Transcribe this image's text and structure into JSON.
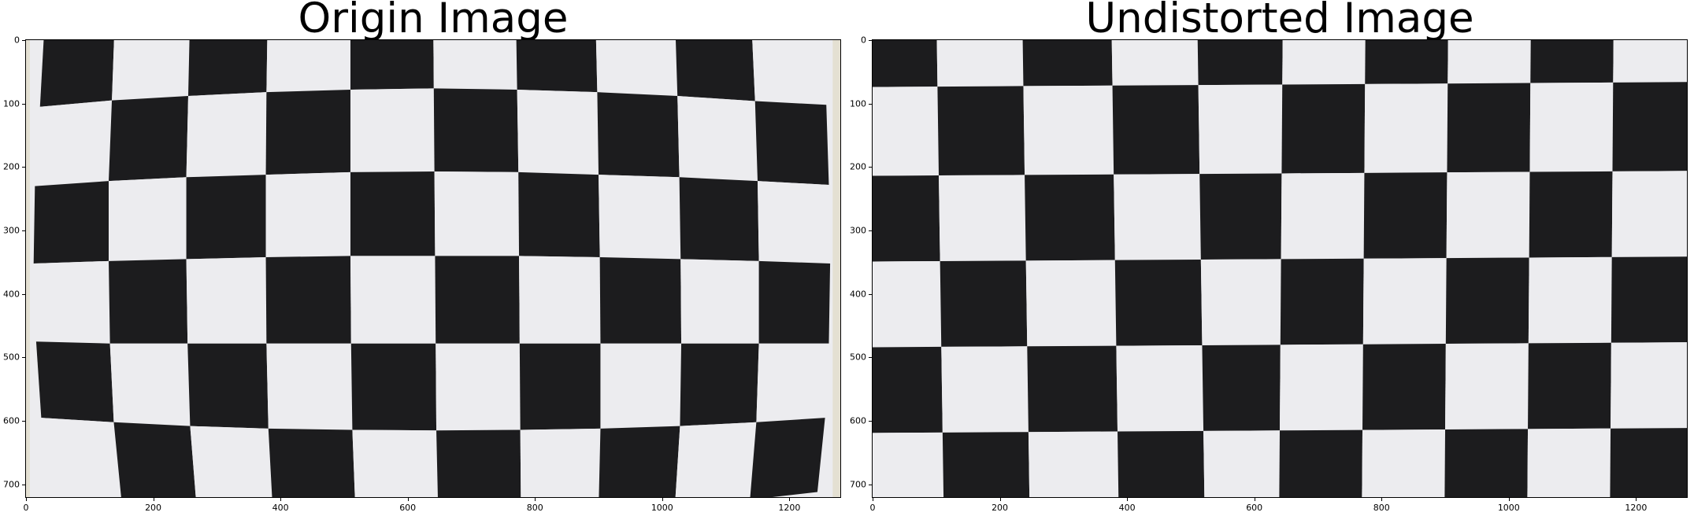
{
  "figure": {
    "panels": [
      {
        "id": "origin",
        "title": "Origin Image",
        "x_ticks": [
          "0",
          "200",
          "400",
          "600",
          "800",
          "1000",
          "1200"
        ],
        "y_ticks": [
          "0",
          "100",
          "200",
          "300",
          "400",
          "500",
          "600",
          "700"
        ],
        "x_tick_values": [
          0,
          200,
          400,
          600,
          800,
          1000,
          1200
        ],
        "y_tick_values": [
          0,
          100,
          200,
          300,
          400,
          500,
          600,
          700
        ],
        "image_width": 1280,
        "image_height": 720,
        "image_description_icon": "distorted-checkerboard-image",
        "colors": {
          "dark": "#1c1c1e",
          "light": "#ececef",
          "edge": "#e4e0d2"
        }
      },
      {
        "id": "undistorted",
        "title": "Undistorted Image",
        "x_ticks": [
          "0",
          "200",
          "400",
          "600",
          "800",
          "1000",
          "1200"
        ],
        "y_ticks": [
          "0",
          "100",
          "200",
          "300",
          "400",
          "500",
          "600",
          "700"
        ],
        "x_tick_values": [
          0,
          200,
          400,
          600,
          800,
          1000,
          1200
        ],
        "y_tick_values": [
          0,
          100,
          200,
          300,
          400,
          500,
          600,
          700
        ],
        "image_width": 1280,
        "image_height": 720,
        "image_description_icon": "undistorted-checkerboard-image",
        "colors": {
          "dark": "#1c1c1e",
          "light": "#ececef"
        }
      }
    ]
  }
}
